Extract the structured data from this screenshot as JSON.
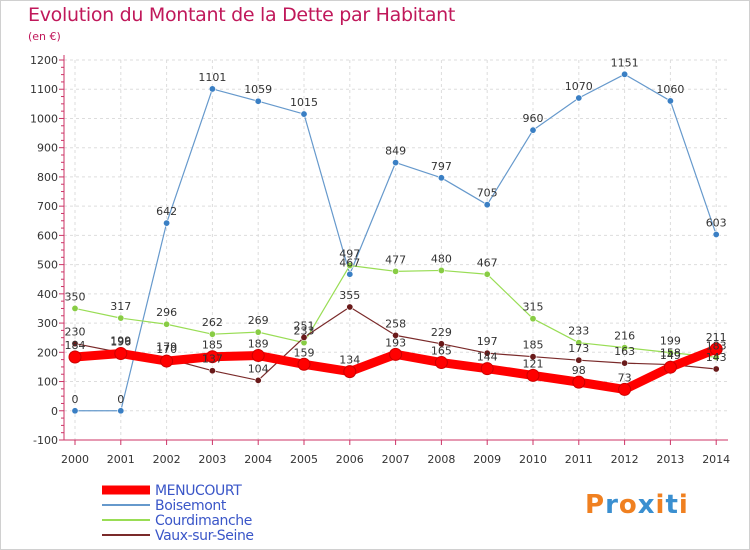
{
  "chart_data": {
    "type": "line",
    "title": "Evolution du Montant de la Dette par Habitant",
    "unit_label": "(en €)",
    "x": [
      "2000",
      "2001",
      "2002",
      "2003",
      "2004",
      "2005",
      "2006",
      "2007",
      "2008",
      "2009",
      "2010",
      "2011",
      "2012",
      "2013",
      "2014"
    ],
    "ylim": [
      -100,
      1200
    ],
    "yticks": [
      "-100",
      "0",
      "100",
      "200",
      "300",
      "400",
      "500",
      "600",
      "700",
      "800",
      "900",
      "1000",
      "1100",
      "1200"
    ],
    "grid": true,
    "legend_position": "bottom-left",
    "series": [
      {
        "name": "MENUCOURT",
        "color": "#ff0000",
        "marker_color": "#ff0000",
        "values": [
          184,
          196,
          170,
          185,
          189,
          159,
          134,
          193,
          165,
          144,
          121,
          98,
          73,
          149,
          211
        ]
      },
      {
        "name": "Boisemont",
        "color": "#6699cc",
        "marker_color": "#3a7fc4",
        "values": [
          0,
          0,
          642,
          1101,
          1059,
          1015,
          467,
          849,
          797,
          705,
          960,
          1070,
          1151,
          1060,
          603
        ]
      },
      {
        "name": "Courdimanche",
        "color": "#99dd55",
        "marker_color": "#88cc44",
        "values": [
          350,
          317,
          296,
          262,
          269,
          233,
          497,
          477,
          480,
          467,
          315,
          233,
          216,
          199,
          183
        ]
      },
      {
        "name": "Vaux-sur-Seine",
        "color": "#7a2a2a",
        "marker_color": "#6a1a1a",
        "values": [
          230,
          199,
          179,
          137,
          104,
          251,
          355,
          258,
          229,
          197,
          185,
          173,
          163,
          158,
          143
        ]
      }
    ]
  },
  "logo": {
    "text": "Proxiti",
    "colors": [
      "#f08020",
      "#3a8fd0",
      "#f08020",
      "#3a8fd0",
      "#f08020",
      "#3a8fd0",
      "#f08020"
    ]
  }
}
